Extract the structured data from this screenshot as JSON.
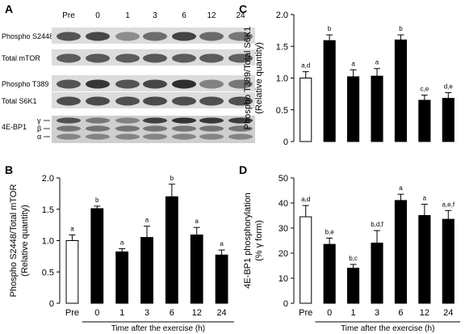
{
  "panels": {
    "A": "A",
    "B": "B",
    "C": "C",
    "D": "D"
  },
  "blot": {
    "lanes": [
      "Pre",
      "0",
      "1",
      "3",
      "6",
      "12",
      "24"
    ],
    "rows": [
      {
        "label": "Phospho S2448",
        "intensity": [
          0.72,
          0.78,
          0.45,
          0.6,
          0.8,
          0.62,
          0.55
        ]
      },
      {
        "label": "Total mTOR",
        "intensity": [
          0.68,
          0.7,
          0.68,
          0.7,
          0.68,
          0.68,
          0.66
        ]
      },
      {
        "label": "Phospho T389",
        "intensity": [
          0.72,
          0.86,
          0.72,
          0.78,
          0.9,
          0.5,
          0.55
        ]
      },
      {
        "label": "Total S6K1",
        "intensity": [
          0.75,
          0.76,
          0.74,
          0.76,
          0.75,
          0.74,
          0.74
        ]
      }
    ],
    "ebp": {
      "label": "4E-BP1",
      "forms": [
        "γ",
        "β",
        "α"
      ]
    }
  },
  "chart_data": [
    {
      "panel": "B",
      "type": "bar",
      "categories": [
        "Pre",
        "0",
        "1",
        "3",
        "6",
        "12",
        "24"
      ],
      "values": [
        1.0,
        1.51,
        0.82,
        1.05,
        1.7,
        1.09,
        0.77
      ],
      "errors": [
        0.09,
        0.04,
        0.05,
        0.18,
        0.2,
        0.12,
        0.08
      ],
      "labels": [
        "a",
        "b",
        "a",
        "a",
        "b",
        "a",
        "a"
      ],
      "bar_colors": [
        "#ffffff",
        "#000000",
        "#000000",
        "#000000",
        "#000000",
        "#000000",
        "#000000"
      ],
      "ylabel": "Phospho S2448/Total mTOR\n(Relative quantity)",
      "xlabel": "Time after the exercise (h)",
      "ylim": [
        0,
        2.0
      ],
      "yticks": [
        "0",
        "0.5",
        "1.0",
        "1.5",
        "2.0"
      ],
      "ytick_values": [
        0,
        0.5,
        1.0,
        1.5,
        2.0
      ]
    },
    {
      "panel": "C",
      "type": "bar",
      "categories": [
        "Pre",
        "0",
        "1",
        "3",
        "6",
        "12",
        "24"
      ],
      "values": [
        1.0,
        1.59,
        1.02,
        1.03,
        1.6,
        0.65,
        0.68
      ],
      "errors": [
        0.1,
        0.09,
        0.11,
        0.12,
        0.08,
        0.08,
        0.09
      ],
      "labels": [
        "a,d",
        "b",
        "a",
        "a",
        "b",
        "c,e",
        "d,e"
      ],
      "bar_colors": [
        "#ffffff",
        "#000000",
        "#000000",
        "#000000",
        "#000000",
        "#000000",
        "#000000"
      ],
      "ylabel": "Phospho T389/Total S6K1\n(Relative quantity)",
      "ylim": [
        0,
        2.0
      ],
      "yticks": [
        "0",
        "0.5",
        "1.0",
        "1.5",
        "2.0"
      ],
      "ytick_values": [
        0,
        0.5,
        1.0,
        1.5,
        2.0
      ]
    },
    {
      "panel": "D",
      "type": "bar",
      "categories": [
        "Pre",
        "0",
        "1",
        "3",
        "6",
        "12",
        "24"
      ],
      "values": [
        34.5,
        23.5,
        14.0,
        24.0,
        41.0,
        35.0,
        33.5
      ],
      "errors": [
        4.5,
        2.5,
        1.5,
        5.0,
        2.5,
        4.5,
        3.5
      ],
      "labels": [
        "a,d",
        "b,e",
        "b,c",
        "b,d,f",
        "a",
        "a",
        "a,e,f"
      ],
      "bar_colors": [
        "#ffffff",
        "#000000",
        "#000000",
        "#000000",
        "#000000",
        "#000000",
        "#000000"
      ],
      "ylabel": "4E-BP1 phosphorylation\n(% γ form)",
      "xlabel": "Time after the exercise (h)",
      "ylim": [
        0,
        50
      ],
      "yticks": [
        "0",
        "10",
        "20",
        "30",
        "40",
        "50"
      ],
      "ytick_values": [
        0,
        10,
        20,
        30,
        40,
        50
      ]
    }
  ]
}
